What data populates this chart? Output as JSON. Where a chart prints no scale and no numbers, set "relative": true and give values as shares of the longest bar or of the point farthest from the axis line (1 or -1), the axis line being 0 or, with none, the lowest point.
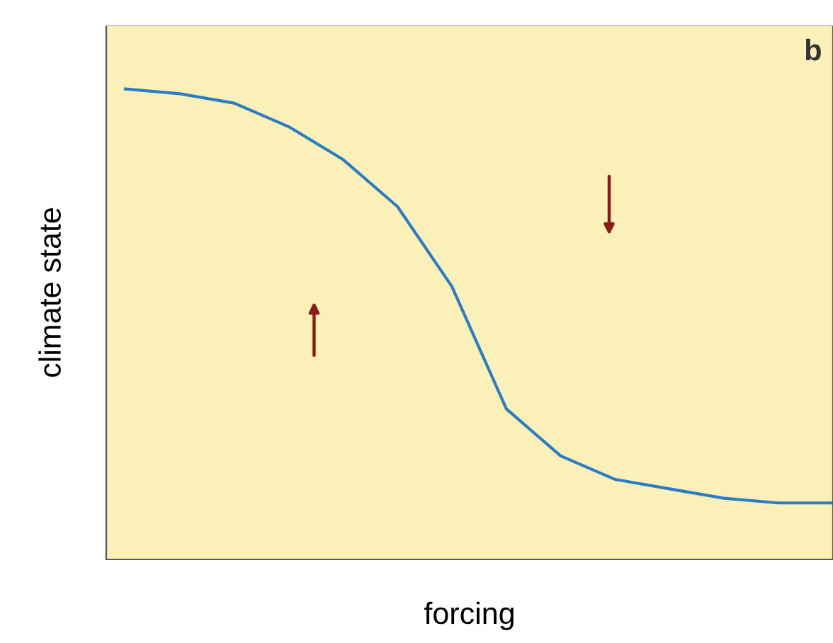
{
  "chart_data": {
    "type": "line",
    "relative": true,
    "xlabel": "forcing",
    "ylabel": "climate state",
    "annotations": [
      "b"
    ],
    "categories": [
      null,
      null,
      null,
      null,
      null,
      null,
      null,
      null,
      null,
      null,
      null,
      null,
      null,
      null
    ],
    "series": [
      {
        "color": "#2a7cc4",
        "values": [
          1,
          0.99,
          0.97,
          0.92,
          0.85,
          0.75,
          0.58,
          0.32,
          0.22,
          0.17,
          0.15,
          0.13,
          0.12,
          0.12
        ]
      }
    ],
    "grid": false,
    "legend": false
  }
}
